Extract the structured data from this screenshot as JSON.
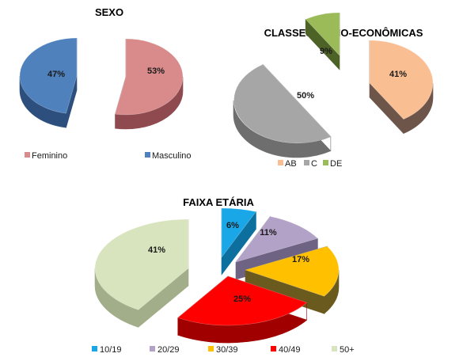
{
  "chart_data": [
    {
      "type": "pie",
      "title": "SEXO",
      "categories": [
        "Feminino",
        "Masculino"
      ],
      "values": [
        53,
        47
      ],
      "value_labels": [
        "53%",
        "47%"
      ],
      "colors": [
        "#d98b8b",
        "#4f81bd"
      ],
      "side_colors": [
        "#8e4a4f",
        "#2c4f7e"
      ],
      "legend": "bottom"
    },
    {
      "type": "pie",
      "title": "CLASSES SÓCIO-ECONÔMICAS",
      "categories": [
        "AB",
        "C",
        "DE"
      ],
      "values": [
        41,
        50,
        9
      ],
      "value_labels": [
        "41%",
        "50%",
        "9%"
      ],
      "colors": [
        "#f9be92",
        "#a6a6a6",
        "#9bbb59"
      ],
      "side_colors": [
        "#6d5549",
        "#6e6e6e",
        "#4d6226"
      ],
      "legend": "bottom"
    },
    {
      "type": "pie",
      "title": "FAIXA ETÁRIA",
      "categories": [
        "10/19",
        "20/29",
        "30/39",
        "40/49",
        "50+"
      ],
      "values": [
        6,
        11,
        17,
        25,
        41
      ],
      "value_labels": [
        "6%",
        "11%",
        "17%",
        "25%",
        "41%"
      ],
      "colors": [
        "#1aa7e8",
        "#b3a2c7",
        "#ffc000",
        "#ff0000",
        "#d7e4bd"
      ],
      "side_colors": [
        "#0d6f9e",
        "#6f6383",
        "#6b5a1e",
        "#a00000",
        "#a2ad8a"
      ],
      "legend": "bottom"
    }
  ]
}
